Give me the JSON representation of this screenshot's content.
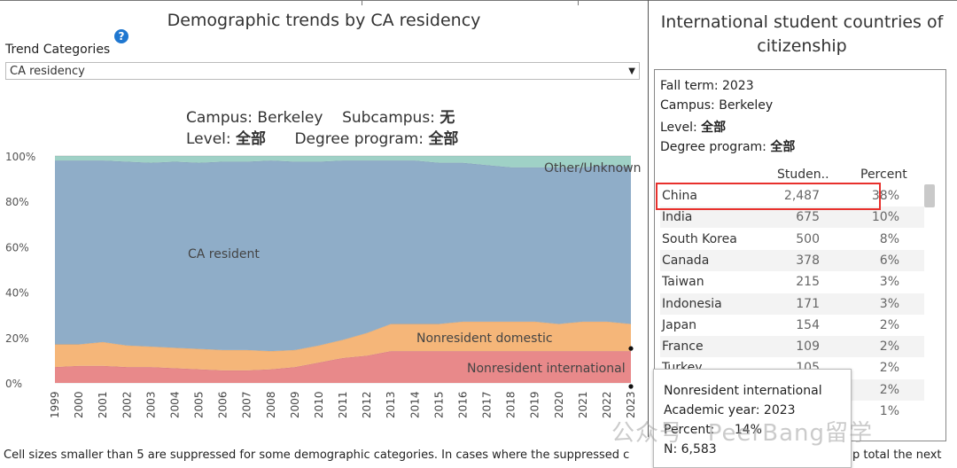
{
  "left_panel": {
    "title": "Demographic trends by CA residency",
    "trend_label": "Trend Categories",
    "dropdown_value": "CA residency",
    "filters_line1_a": "Campus: Berkeley",
    "filters_line1_b": "Subcampus: ",
    "filters_line1_b_val": "无",
    "filters_line2_a": "Level: ",
    "filters_line2_a_val": "全部",
    "filters_line2_b": "Degree program: ",
    "filters_line2_b_val": "全部"
  },
  "chart_data": {
    "type": "area",
    "stacked": true,
    "x": [
      "1999",
      "2000",
      "2001",
      "2002",
      "2003",
      "2004",
      "2005",
      "2006",
      "2007",
      "2008",
      "2009",
      "2010",
      "2011",
      "2012",
      "2013",
      "2014",
      "2015",
      "2016",
      "2017",
      "2018",
      "2019",
      "2020",
      "2021",
      "2022",
      "2023"
    ],
    "yticks": [
      "100%",
      "80%",
      "60%",
      "40%",
      "20%",
      "0%"
    ],
    "ylim": [
      0,
      100
    ],
    "series": [
      {
        "name": "Nonresident international",
        "color": "#e8898a",
        "values": [
          7,
          7.5,
          7.5,
          7,
          7,
          6.5,
          6,
          5.5,
          5.5,
          6,
          7,
          9,
          11,
          12,
          14,
          14,
          14,
          14,
          14,
          14,
          14,
          14,
          14,
          14,
          14
        ]
      },
      {
        "name": "Nonresident domestic",
        "color": "#f5b679",
        "values": [
          10,
          9.5,
          10.5,
          9.5,
          9,
          9,
          9,
          9,
          9,
          8,
          7.5,
          7.5,
          8,
          10,
          12,
          12,
          12,
          13,
          13,
          13,
          13,
          12,
          13,
          13,
          12
        ]
      },
      {
        "name": "CA resident",
        "color": "#8fadc8",
        "values": [
          81,
          81,
          80,
          81,
          81,
          82,
          82,
          83,
          83,
          84,
          83,
          81,
          79,
          76,
          72,
          72,
          71,
          70,
          69,
          68,
          68,
          69,
          68,
          69,
          69
        ]
      },
      {
        "name": "Other/Unknown",
        "color": "#9fd1c6",
        "values": [
          2,
          2,
          2,
          2.5,
          3,
          2.5,
          3,
          2.5,
          2.5,
          2,
          2.5,
          2.5,
          2,
          2,
          2,
          2,
          3,
          3,
          4,
          5,
          5,
          5,
          5,
          4,
          5
        ]
      }
    ]
  },
  "right_panel": {
    "title_line1": "International student countries of",
    "title_line2": "citizenship",
    "fall_term": "Fall term: 2023",
    "campus": "Campus: Berkeley",
    "level_label": "Level: ",
    "level_val": "全部",
    "degree_label": "Degree program: ",
    "degree_val": "全部",
    "col_students": "Studen..",
    "col_percent": "Percent",
    "rows": [
      {
        "country": "China",
        "students": "2,487",
        "percent": "38%"
      },
      {
        "country": "India",
        "students": "675",
        "percent": "10%"
      },
      {
        "country": "South Korea",
        "students": "500",
        "percent": "8%"
      },
      {
        "country": "Canada",
        "students": "378",
        "percent": "6%"
      },
      {
        "country": "Taiwan",
        "students": "215",
        "percent": "3%"
      },
      {
        "country": "Indonesia",
        "students": "171",
        "percent": "3%"
      },
      {
        "country": "Japan",
        "students": "154",
        "percent": "2%"
      },
      {
        "country": "France",
        "students": "109",
        "percent": "2%"
      },
      {
        "country": "Turkey",
        "students": "105",
        "percent": "2%"
      },
      {
        "country": "",
        "students": "",
        "percent": "2%"
      },
      {
        "country": "",
        "students": "",
        "percent": "1%"
      }
    ]
  },
  "tooltip": {
    "line1": "Nonresident international",
    "line2": "Academic year: 2023",
    "line3": "Percent:",
    "line3_val": "14%",
    "line4": "N: 6,583"
  },
  "footer": {
    "left": "Cell sizes smaller than 5 are suppressed for some demographic categories. In cases where the suppressed c",
    "right": "p total the next"
  },
  "watermark": "公众号 · PeerBang留学"
}
